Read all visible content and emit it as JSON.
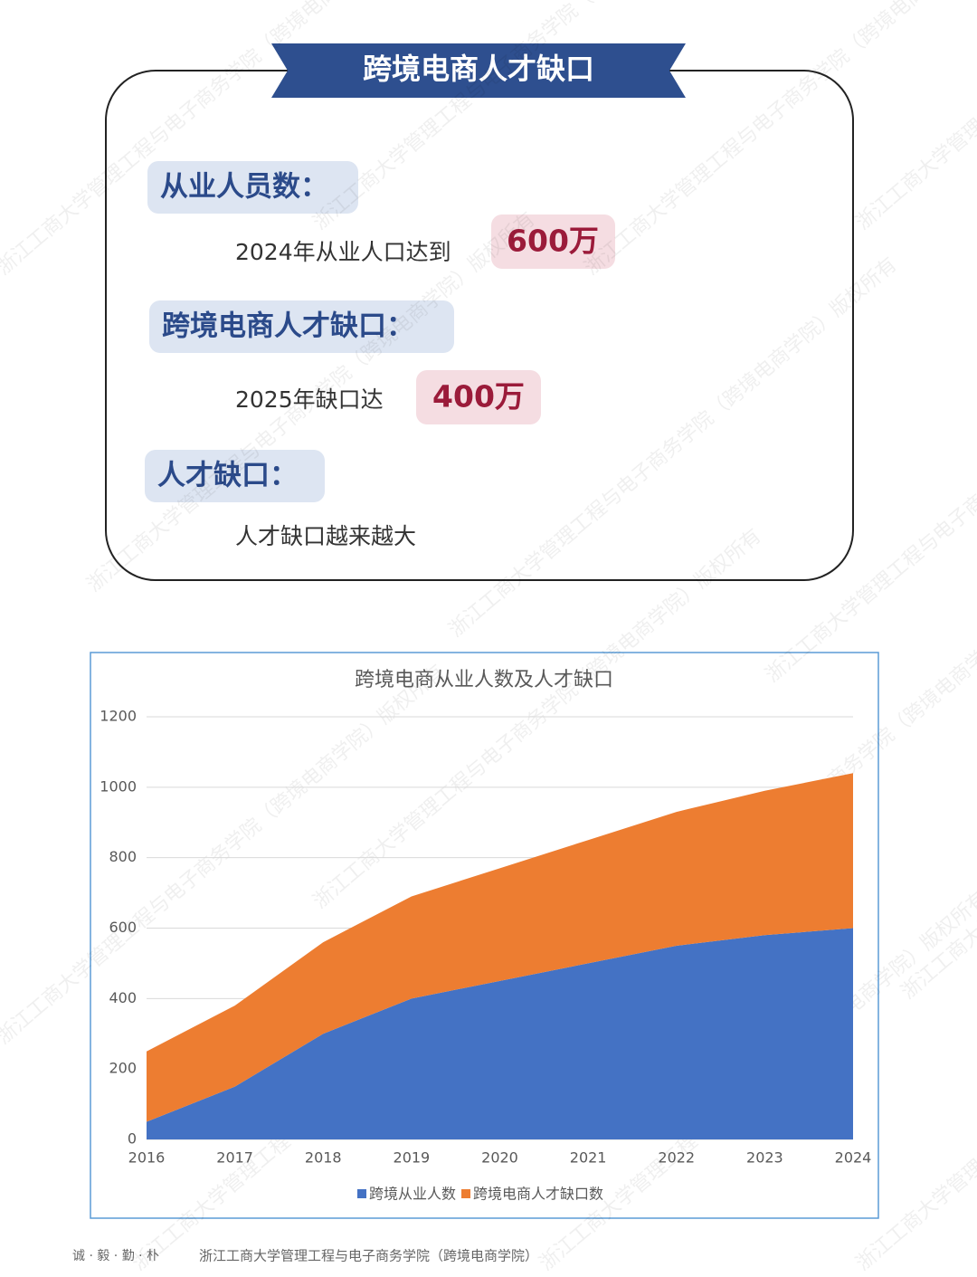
{
  "card": {
    "title": "跨境电商人才缺口",
    "items": [
      {
        "label": "从业人员数：",
        "text": "2024年从业人口达到",
        "highlight": "600万"
      },
      {
        "label": "跨境电商人才缺口：",
        "text": "2025年缺口达",
        "highlight": "400万"
      },
      {
        "label": "人才缺口：",
        "text": "人才缺口越来越大"
      }
    ]
  },
  "chart_data": {
    "type": "stacked-area",
    "title": "跨境电商从业人数及人才缺口",
    "categories": [
      "2016",
      "2017",
      "2018",
      "2019",
      "2020",
      "2021",
      "2022",
      "2023",
      "2024"
    ],
    "series": [
      {
        "name": "跨境从业人数",
        "color": "#4472c4",
        "values": [
          50,
          150,
          300,
          400,
          450,
          500,
          550,
          580,
          600
        ]
      },
      {
        "name": "跨境电商人才缺口数",
        "color": "#ed7d31",
        "values": [
          200,
          230,
          260,
          290,
          320,
          350,
          380,
          410,
          440
        ]
      }
    ],
    "ylim": [
      0,
      1200
    ],
    "yticks": [
      0,
      200,
      400,
      600,
      800,
      1000,
      1200
    ],
    "grid": true,
    "legend": "bottom"
  },
  "footer": {
    "motto": "诚 · 毅 · 勤 · 朴",
    "org": "浙江工商大学管理工程与电子商务学院（跨境电商学院）"
  },
  "watermark": "浙江工商大学管理工程与电子商务学院（跨境电商学院）版权所有"
}
